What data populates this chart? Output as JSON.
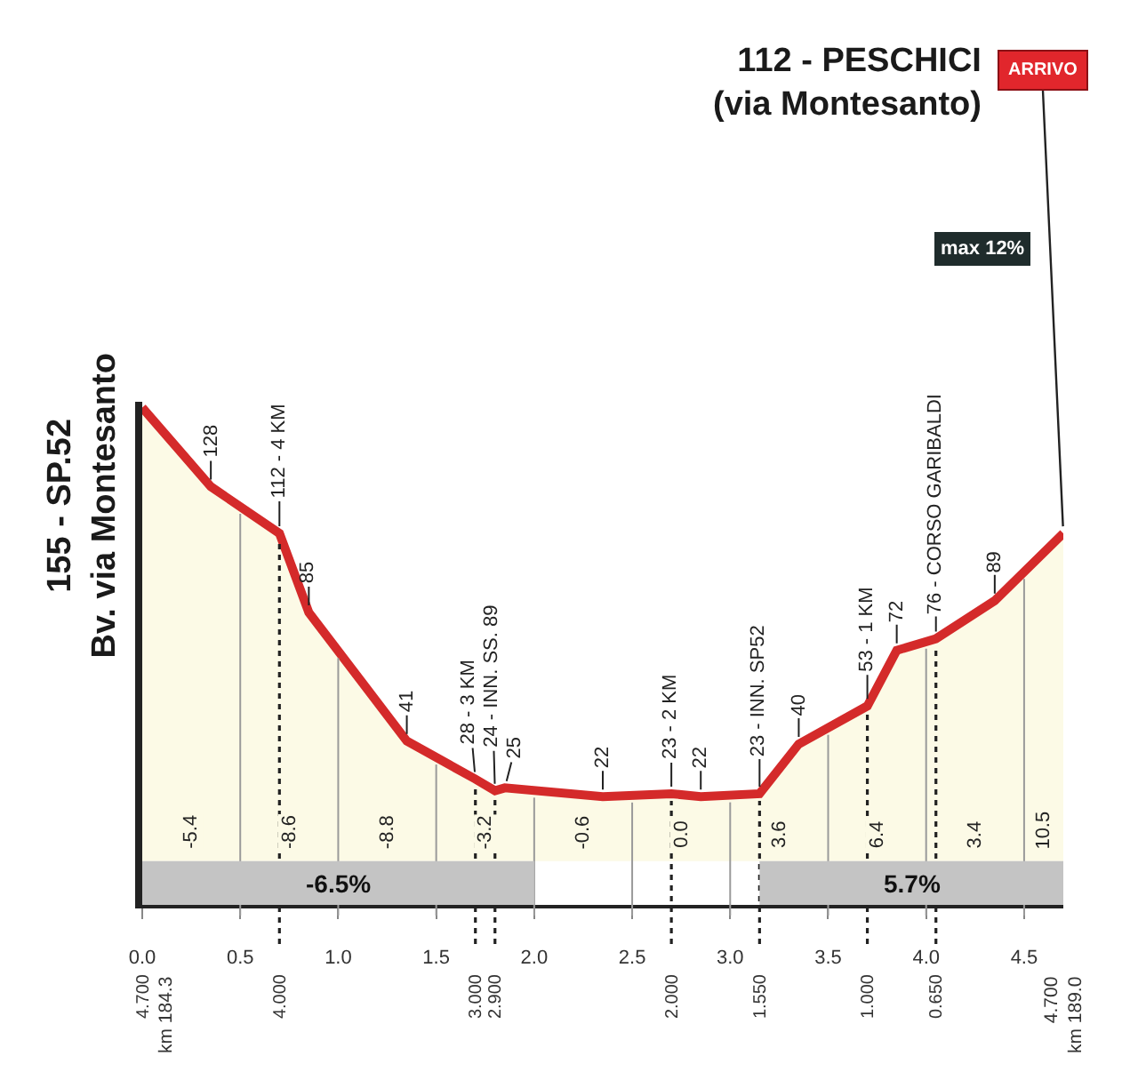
{
  "chart_data": {
    "type": "area",
    "x": [
      0,
      0.35,
      0.7,
      0.85,
      1.35,
      1.7,
      1.8,
      1.85,
      2.35,
      2.7,
      2.85,
      3.15,
      3.35,
      3.7,
      3.85,
      4.05,
      4.35,
      4.7
    ],
    "values": [
      155,
      128,
      112,
      85,
      41,
      28,
      24,
      25,
      22,
      23,
      22,
      23,
      40,
      53,
      72,
      76,
      89,
      112
    ],
    "value_labels": [
      null,
      "128",
      "112 - 4 KM",
      "85",
      "41",
      "28 - 3 KM",
      "24 - INN. SS. 89",
      "25",
      "22",
      "23 - 2 KM",
      "22",
      "23 - INN. SP52",
      "40",
      "53 - 1 KM",
      "72",
      "76 - CORSO GARIBALDI",
      "89",
      null
    ],
    "color": "#d42a2a",
    "xlim": [
      0,
      4.7
    ],
    "xticks": [
      {
        "value": 0,
        "label": "0.0"
      },
      0.5,
      {
        "value": 1,
        "label": "1.0"
      },
      1.5,
      {
        "value": 2,
        "label": "2.0"
      },
      2.5,
      {
        "value": 3,
        "label": "3.0"
      },
      3.5,
      {
        "value": 4,
        "label": "4.0"
      },
      4.5
    ],
    "x2lim": [
      4.7,
      0
    ],
    "x2ticks": [
      {
        "value": 4.7,
        "label": "4.700"
      },
      {
        "value": 4,
        "label": "4.000"
      },
      {
        "value": 3,
        "label": "3.000"
      },
      {
        "value": 2.9,
        "label": "2.900"
      },
      {
        "value": 2,
        "label": "2.000"
      },
      {
        "value": 1.55,
        "label": "1.550"
      },
      {
        "value": 1,
        "label": "1.000"
      },
      {
        "value": 0.65,
        "label": "0.650"
      }
    ],
    "ylim": [
      -15,
      157
    ],
    "tick_labels": "x",
    "ref_lines": [
      {
        "axis": "x",
        "value": 0.5,
        "color": "#9a9a9a"
      },
      {
        "axis": "x",
        "value": 1.0,
        "color": "#9a9a9a"
      },
      {
        "axis": "x",
        "value": 1.5,
        "color": "#9a9a9a"
      },
      {
        "axis": "x",
        "value": 2.0,
        "color": "#9a9a9a"
      },
      {
        "axis": "x",
        "value": 2.5,
        "color": "#9a9a9a"
      },
      {
        "axis": "x",
        "value": 3.0,
        "color": "#9a9a9a"
      },
      {
        "axis": "x",
        "value": 3.5,
        "color": "#9a9a9a"
      },
      {
        "axis": "x",
        "value": 4.0,
        "color": "#9a9a9a"
      },
      {
        "axis": "x",
        "value": 4.5,
        "color": "#9a9a9a"
      },
      {
        "axis": "x",
        "value": 0.7,
        "color": "#222222",
        "line_style": "dotted"
      },
      {
        "axis": "x",
        "value": 1.7,
        "color": "#222222",
        "line_style": "dotted"
      },
      {
        "axis": "x",
        "value": 1.8,
        "color": "#222222",
        "line_style": "dotted"
      },
      {
        "axis": "x",
        "value": 2.7,
        "color": "#222222",
        "line_style": "dotted"
      },
      {
        "axis": "x",
        "value": 3.15,
        "color": "#222222",
        "line_style": "dotted"
      },
      {
        "axis": "x",
        "value": 3.7,
        "color": "#222222",
        "line_style": "dotted"
      },
      {
        "axis": "x",
        "value": 4.05,
        "color": "#222222",
        "line_style": "dotted"
      }
    ],
    "bands": [
      {
        "axis": "x",
        "from": 0,
        "to": 2.0,
        "label": "-6.5%",
        "color": "#c4c4c4"
      },
      {
        "axis": "x",
        "from": 3.15,
        "to": 4.7,
        "label": "5.7%",
        "color": "#c4c4c4"
      }
    ],
    "annotations": [
      {
        "text": "155 - SP.52\nBv. via Montesanto",
        "x": 0,
        "y": 155
      },
      "112 - PESCHICI\n(via Montesanto)",
      {
        "text": "ARRIVO",
        "x": 4.7,
        "y": 112
      },
      "max 12%",
      "km 184.3",
      "4.700\nkm 189.0",
      "-5.4",
      "-8.6",
      "-8.8",
      "-3.2",
      "-0.6",
      "0.0",
      "3.6",
      "6.4",
      "3.4",
      "10.5"
    ]
  }
}
